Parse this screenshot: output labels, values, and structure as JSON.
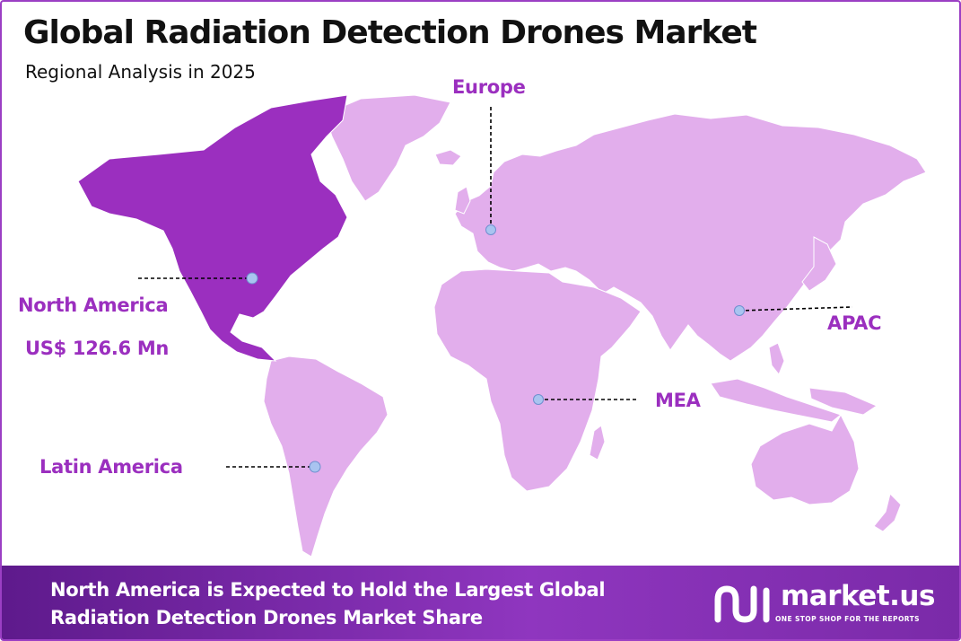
{
  "header": {
    "title": "Global Radiation Detection Drones Market",
    "subtitle": "Regional Analysis in 2025"
  },
  "colors": {
    "highlight_region": "#9b2fbf",
    "other_regions": "#e2aeec",
    "label_text": "#9b2fbf",
    "marker": "#a9c4f0",
    "footer_bg": "#7a2aa8"
  },
  "regions": {
    "north_america": {
      "name": "North America",
      "value": "US$ 126.6 Mn",
      "highlighted": true
    },
    "europe": {
      "name": "Europe"
    },
    "apac": {
      "name": "APAC"
    },
    "mea": {
      "name": "MEA"
    },
    "latin_america": {
      "name": "Latin America"
    }
  },
  "footer": {
    "line1": "North America is Expected to Hold the Largest Global",
    "line2": "Radiation Detection Drones Market Share"
  },
  "brand": {
    "name": "market.us",
    "tagline": "ONE STOP SHOP FOR THE REPORTS",
    "logo_icon": "market-us-logo-icon"
  }
}
